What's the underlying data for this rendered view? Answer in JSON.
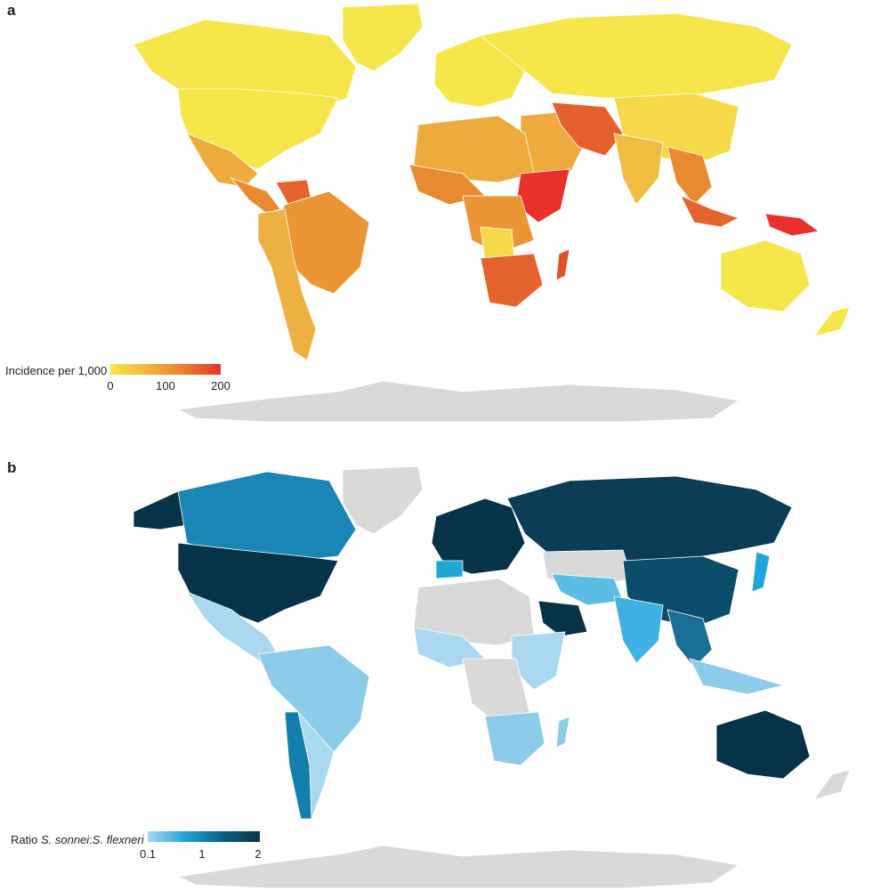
{
  "panels": {
    "a": {
      "letter": "a",
      "legend": {
        "title": "Incidence per 1,000",
        "ticks": [
          "0",
          "100",
          "200"
        ],
        "colors": [
          "#f7e64a",
          "#f0b53e",
          "#ea7d2e",
          "#e8312a"
        ]
      }
    },
    "b": {
      "letter": "b",
      "legend": {
        "title_prefix": "Ratio ",
        "title_species1": "S. sonnei",
        "title_sep": ":",
        "title_species2": "S. flexneri",
        "ticks": [
          "0.1",
          "1",
          "2"
        ],
        "colors": [
          "#a9d8f0",
          "#1ea6d9",
          "#0b5f86",
          "#073348"
        ]
      }
    }
  },
  "colors": {
    "no_data": "#d9d9d9",
    "ocean": "#ffffff"
  }
}
